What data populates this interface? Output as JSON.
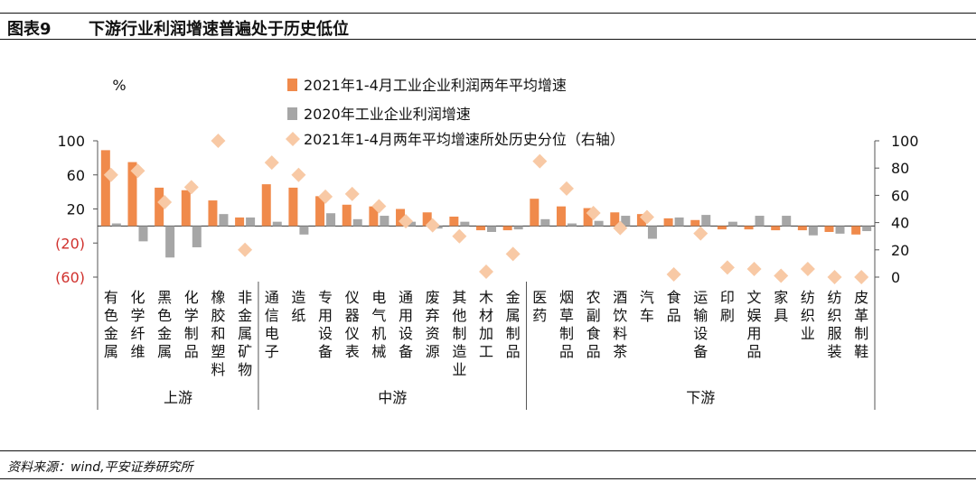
{
  "figure": {
    "label": "图表9",
    "title": "下游行业利润增速普遍处于历史低位",
    "source": "资料来源：wind,平安证券研究所"
  },
  "colors": {
    "series1": "#F08A4B",
    "series2": "#A6A6A6",
    "series3": "#F8C9A5",
    "negative_tick": "#D0312D"
  },
  "chart_data": {
    "type": "bar",
    "left_unit": "%",
    "left_ylim": [
      -60,
      100
    ],
    "left_ticks": [
      100,
      60,
      20,
      -20,
      -60
    ],
    "left_tick_labels": [
      "100",
      "60",
      "20",
      "(20)",
      "(60)"
    ],
    "right_ylim": [
      0,
      100
    ],
    "right_ticks": [
      100,
      80,
      60,
      40,
      20,
      0
    ],
    "right_tick_labels": [
      "100",
      "80",
      "60",
      "40",
      "20",
      "0"
    ],
    "legend": [
      "2021年1-4月工业企业利润两年平均增速",
      "2020年工业企业利润增速",
      "2021年1-4月两年平均增速所处历史分位（右轴）"
    ],
    "categories": [
      "有色金属",
      "化学纤维",
      "黑色金属",
      "化学制品",
      "橡胶和塑料",
      "非金属矿物",
      "通信电子",
      "造纸",
      "专用设备",
      "仪器仪表",
      "电气机械",
      "通用设备",
      "废弃资源",
      "其他制造业",
      "木材加工",
      "金属制品",
      "医药",
      "烟草制品",
      "农副食品",
      "酒饮料茶",
      "汽车",
      "食品",
      "运输设备",
      "印刷",
      "文娱用品",
      "家具",
      "纺织业",
      "纺织服装",
      "皮革制鞋"
    ],
    "groups": [
      {
        "label": "上游",
        "start": 0,
        "end": 5
      },
      {
        "label": "中游",
        "start": 6,
        "end": 15
      },
      {
        "label": "下游",
        "start": 16,
        "end": 28
      }
    ],
    "series": [
      {
        "name": "2021年1-4月工业企业利润两年平均增速",
        "axis": "left",
        "kind": "bar",
        "values": [
          89,
          75,
          45,
          42,
          30,
          10,
          49,
          45,
          35,
          25,
          23,
          20,
          16,
          11,
          -5,
          -5,
          32,
          23,
          21,
          16,
          14,
          9,
          7,
          -4,
          -4,
          -5,
          -5,
          -7,
          -10
        ]
      },
      {
        "name": "2020年工业企业利润增速",
        "axis": "left",
        "kind": "bar",
        "values": [
          3,
          -18,
          -37,
          -25,
          14,
          10,
          5,
          -10,
          15,
          8,
          12,
          5,
          -3,
          5,
          -7,
          -4,
          8,
          3,
          6,
          12,
          -15,
          10,
          13,
          5,
          12,
          12,
          -11,
          -9,
          -6
        ]
      },
      {
        "name": "2021年1-4月两年平均增速所处历史分位（右轴）",
        "axis": "right",
        "kind": "scatter",
        "values": [
          75,
          78,
          55,
          66,
          100,
          20,
          84,
          75,
          59,
          61,
          52,
          41,
          38,
          30,
          4,
          17,
          85,
          65,
          47,
          36,
          44,
          2,
          32,
          7,
          6,
          1,
          6,
          0,
          0
        ]
      }
    ]
  }
}
